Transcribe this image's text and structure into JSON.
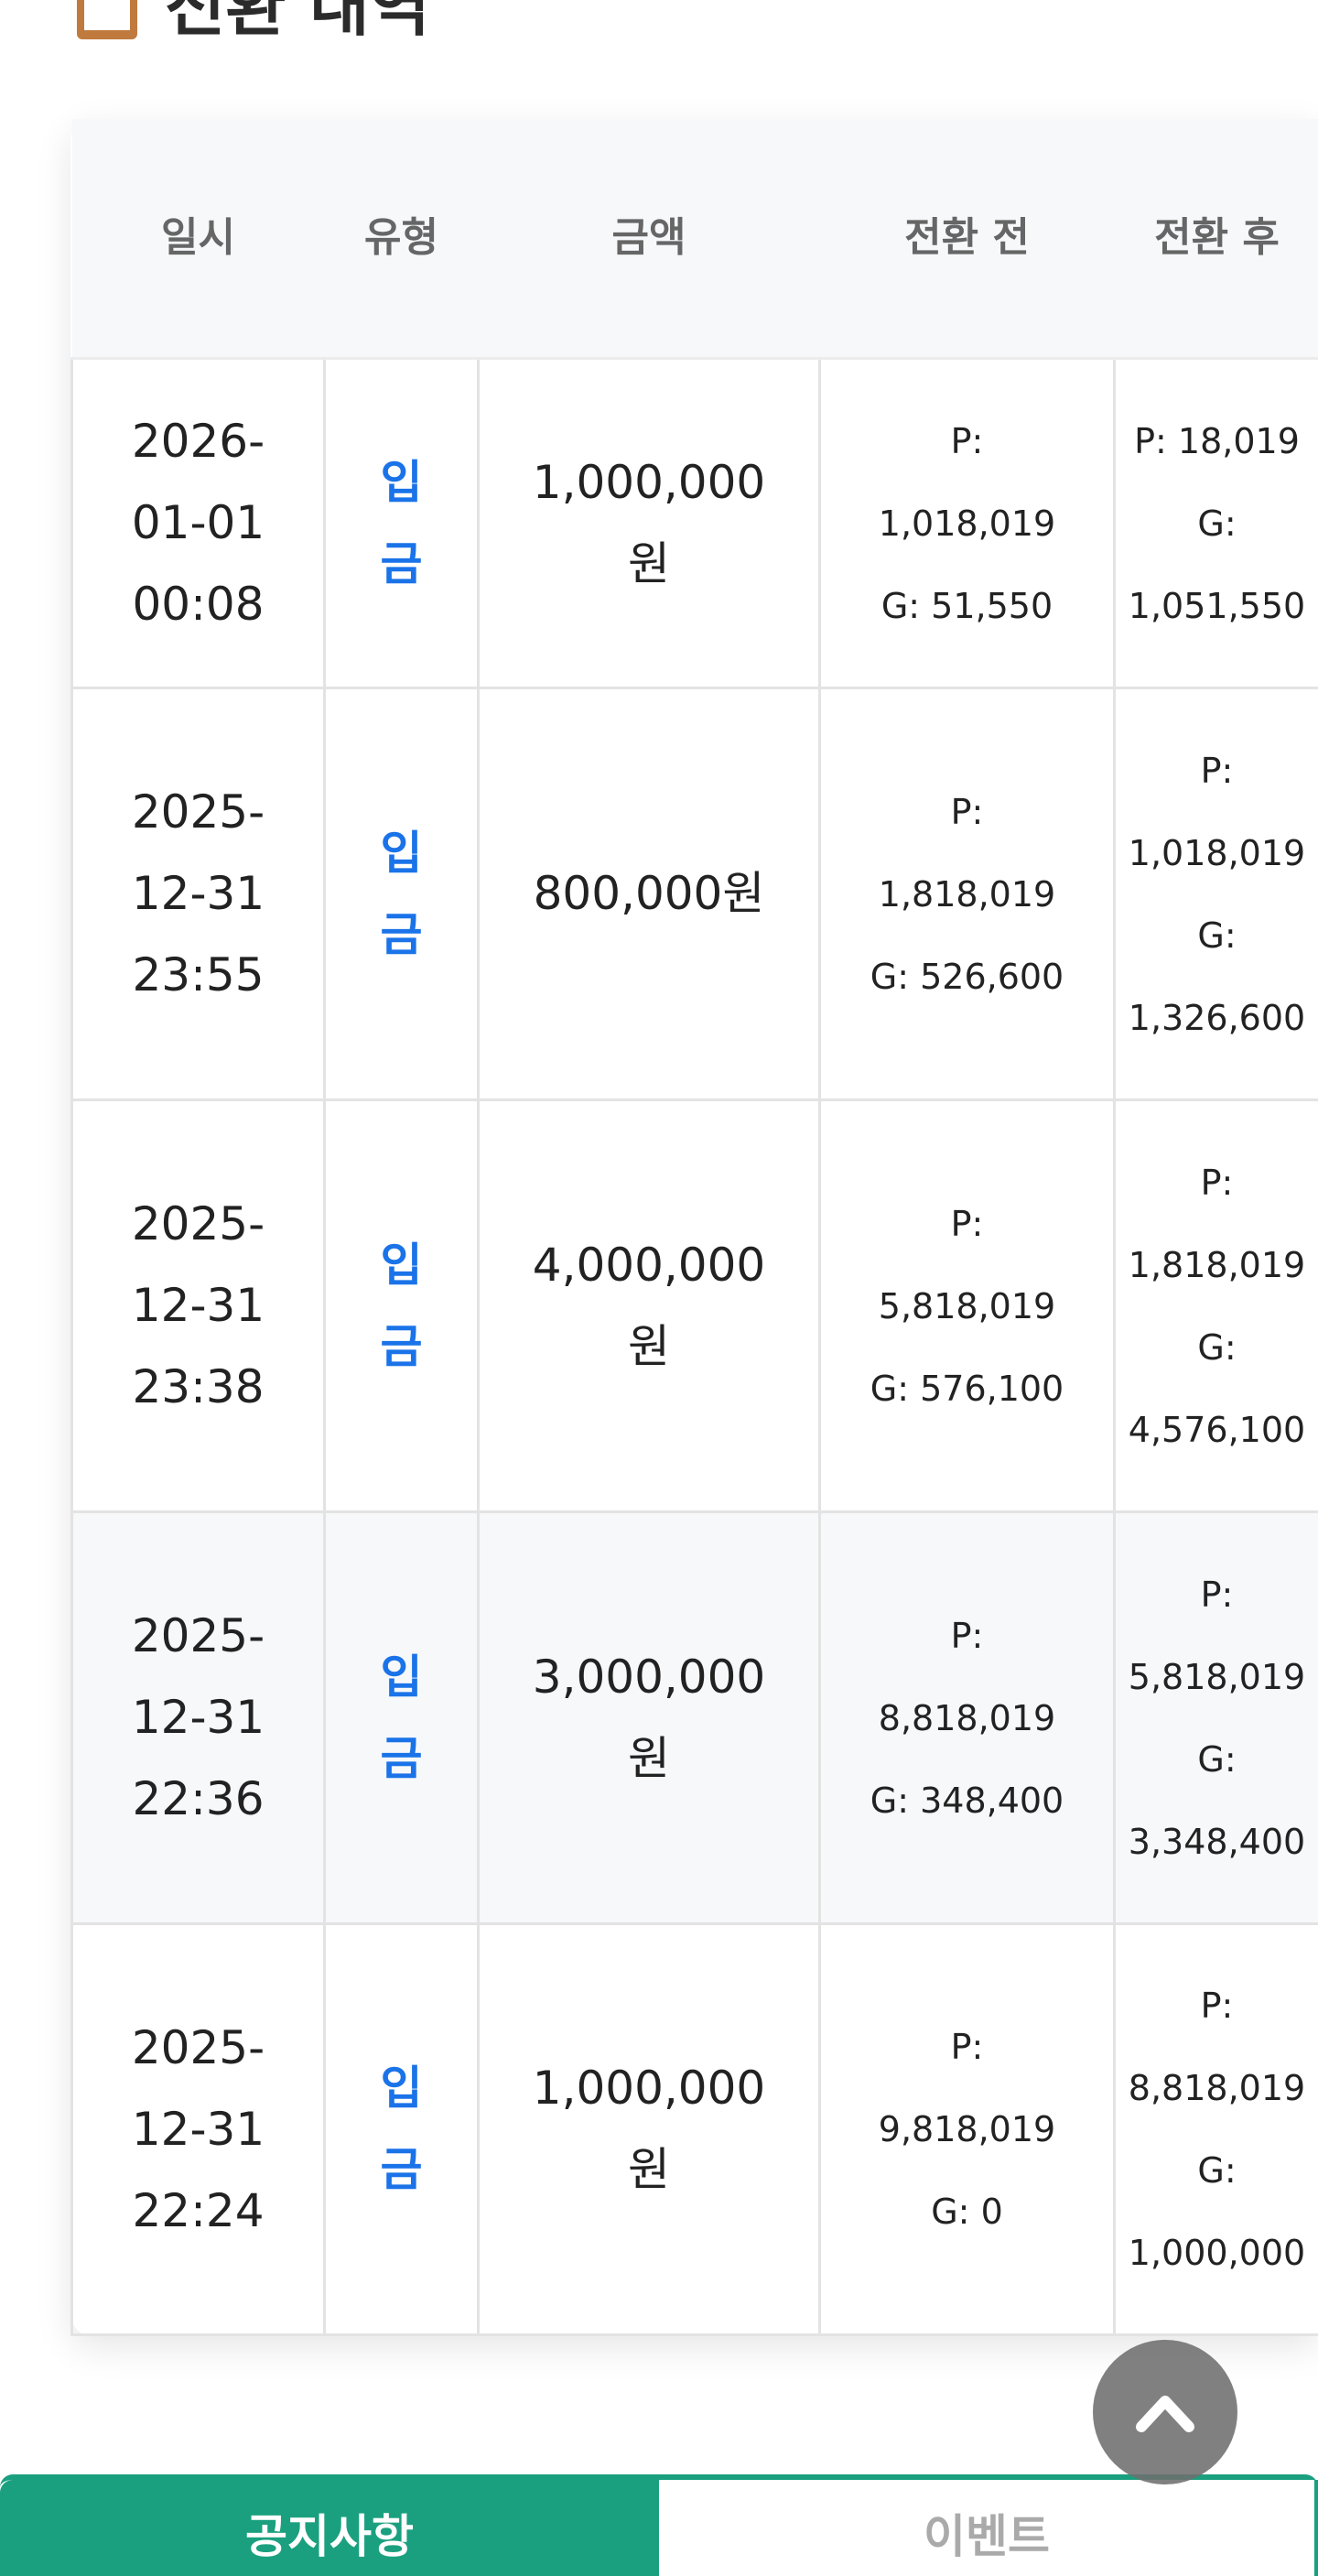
{
  "section": {
    "title": "전환 내역",
    "icon": "clipboard-icon"
  },
  "table": {
    "headers": [
      "일시",
      "유형",
      "금액",
      "전환 전",
      "전환 후"
    ],
    "rows": [
      {
        "date": "2026-01-01 00:08",
        "type": "입금",
        "amount": "1,000,000원",
        "before": "P: 1,018,019 G: 51,550",
        "after": "P: 18,019 G: 1,051,550"
      },
      {
        "date": "2025-12-31 23:55",
        "type": "입금",
        "amount": "800,000원",
        "before": "P: 1,818,019 G: 526,600",
        "after": "P: 1,018,019 G: 1,326,600"
      },
      {
        "date": "2025-12-31 23:38",
        "type": "입금",
        "amount": "4,000,000원",
        "before": "P: 5,818,019 G: 576,100",
        "after": "P: 1,818,019 G: 4,576,100"
      },
      {
        "date": "2025-12-31 22:36",
        "type": "입금",
        "amount": "3,000,000원",
        "before": "P: 8,818,019 G: 348,400",
        "after": "P: 5,818,019 G: 3,348,400"
      },
      {
        "date": "2025-12-31 22:24",
        "type": "입금",
        "amount": "1,000,000원",
        "before": "P: 9,818,019 G: 0",
        "after": "P: 8,818,019 G: 1,000,000"
      }
    ]
  },
  "scroll_top": {
    "icon": "chevron-up-icon"
  },
  "tabs": [
    {
      "label": "공지사항",
      "active": true
    },
    {
      "label": "이벤트",
      "active": false
    }
  ],
  "colors": {
    "accent": "#1ba07f",
    "type_text": "#1a73e8",
    "scroll_button": "#808080"
  }
}
